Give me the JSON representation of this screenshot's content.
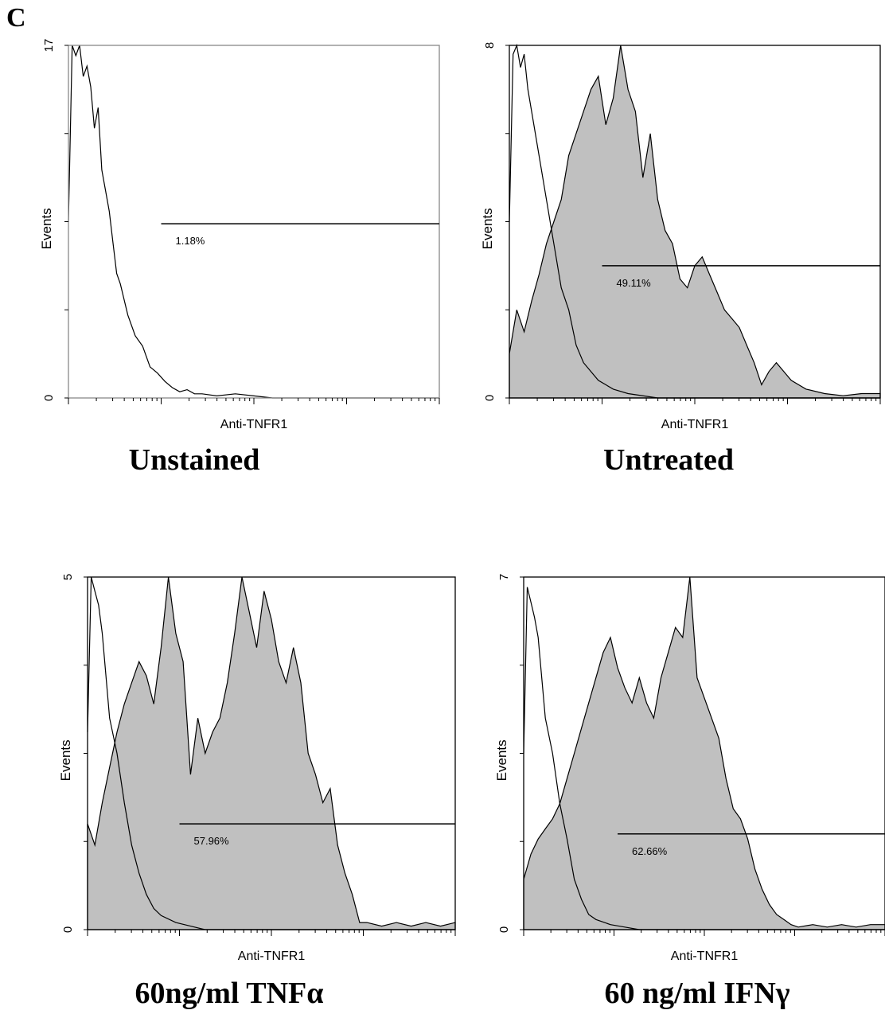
{
  "figure_label": "C",
  "chart_data": [
    {
      "type": "area",
      "title": "Unstained",
      "xlabel": "Anti-TNFR1",
      "ylabel": "Events",
      "ylim": [
        0,
        17
      ],
      "y_tick_labels": [
        "0",
        "17"
      ],
      "x_scale": "log",
      "gate_label": "1.18%",
      "series": [
        {
          "style": "outline",
          "x": [
            0.0,
            0.01,
            0.02,
            0.03,
            0.04,
            0.05,
            0.06,
            0.07,
            0.08,
            0.09,
            0.1,
            0.11,
            0.12,
            0.13,
            0.14,
            0.16,
            0.18,
            0.2,
            0.22,
            0.24,
            0.26,
            0.28,
            0.3,
            0.32,
            0.34,
            0.36,
            0.4,
            0.45,
            0.5,
            0.55,
            0.6,
            1.0
          ],
          "values": [
            8.5,
            17,
            16.5,
            17,
            15.5,
            16,
            15,
            13,
            14,
            11,
            10,
            9,
            7.5,
            6,
            5.5,
            4,
            3,
            2.5,
            1.5,
            1.2,
            0.8,
            0.5,
            0.3,
            0.4,
            0.2,
            0.2,
            0.1,
            0.2,
            0.1,
            0,
            0,
            0
          ]
        }
      ]
    },
    {
      "type": "area",
      "title": "Untreated",
      "xlabel": "Anti-TNFR1",
      "ylabel": "Events",
      "ylim": [
        0,
        8
      ],
      "y_tick_labels": [
        "0",
        "8"
      ],
      "x_scale": "log",
      "gate_label": "49.11%",
      "series": [
        {
          "style": "filled",
          "x": [
            0.0,
            0.02,
            0.04,
            0.06,
            0.08,
            0.1,
            0.12,
            0.14,
            0.16,
            0.18,
            0.2,
            0.22,
            0.24,
            0.26,
            0.28,
            0.3,
            0.32,
            0.34,
            0.36,
            0.38,
            0.4,
            0.42,
            0.44,
            0.46,
            0.48,
            0.5,
            0.52,
            0.54,
            0.56,
            0.58,
            0.6,
            0.62,
            0.64,
            0.66,
            0.68,
            0.7,
            0.72,
            0.74,
            0.76,
            0.8,
            0.85,
            0.9,
            0.95,
            1.0
          ],
          "values": [
            1.0,
            2.0,
            1.5,
            2.2,
            2.8,
            3.5,
            4.0,
            4.5,
            5.5,
            6.0,
            6.5,
            7.0,
            7.3,
            6.2,
            6.8,
            8.0,
            7.0,
            6.5,
            5.0,
            6.0,
            4.5,
            3.8,
            3.5,
            2.7,
            2.5,
            3.0,
            3.2,
            2.8,
            2.4,
            2.0,
            1.8,
            1.6,
            1.2,
            0.8,
            0.3,
            0.6,
            0.8,
            0.6,
            0.4,
            0.2,
            0.1,
            0.05,
            0.1,
            0.1
          ]
        },
        {
          "style": "outline",
          "x": [
            0.0,
            0.01,
            0.02,
            0.03,
            0.04,
            0.05,
            0.06,
            0.08,
            0.1,
            0.12,
            0.14,
            0.16,
            0.18,
            0.2,
            0.24,
            0.28,
            0.32,
            0.4,
            0.5,
            0.6,
            1.0
          ],
          "values": [
            4.0,
            7.8,
            8.0,
            7.5,
            7.8,
            7.0,
            6.5,
            5.5,
            4.5,
            3.5,
            2.5,
            2.0,
            1.2,
            0.8,
            0.4,
            0.2,
            0.1,
            0,
            0,
            0,
            0
          ]
        }
      ]
    },
    {
      "type": "area",
      "title": "60ng/ml TNFα",
      "xlabel": "Anti-TNFR1",
      "ylabel": "Events",
      "ylim": [
        0,
        5
      ],
      "y_tick_labels": [
        "0",
        "5"
      ],
      "x_scale": "log",
      "gate_label": "57.96%",
      "series": [
        {
          "style": "filled",
          "x": [
            0.0,
            0.02,
            0.04,
            0.06,
            0.08,
            0.1,
            0.12,
            0.14,
            0.16,
            0.18,
            0.2,
            0.22,
            0.24,
            0.26,
            0.28,
            0.3,
            0.32,
            0.34,
            0.36,
            0.38,
            0.4,
            0.42,
            0.44,
            0.46,
            0.48,
            0.5,
            0.52,
            0.54,
            0.56,
            0.58,
            0.6,
            0.62,
            0.64,
            0.66,
            0.68,
            0.7,
            0.72,
            0.74,
            0.76,
            0.8,
            0.84,
            0.88,
            0.92,
            0.96,
            1.0
          ],
          "values": [
            1.5,
            1.2,
            1.8,
            2.3,
            2.8,
            3.2,
            3.5,
            3.8,
            3.6,
            3.2,
            4.0,
            5.0,
            4.2,
            3.8,
            2.2,
            3.0,
            2.5,
            2.8,
            3.0,
            3.5,
            4.2,
            5.0,
            4.5,
            4.0,
            4.8,
            4.4,
            3.8,
            3.5,
            4.0,
            3.5,
            2.5,
            2.2,
            1.8,
            2.0,
            1.2,
            0.8,
            0.5,
            0.1,
            0.1,
            0.05,
            0.1,
            0.05,
            0.1,
            0.05,
            0.1
          ]
        },
        {
          "style": "outline",
          "x": [
            0.0,
            0.01,
            0.02,
            0.03,
            0.04,
            0.05,
            0.06,
            0.08,
            0.1,
            0.12,
            0.14,
            0.16,
            0.18,
            0.2,
            0.24,
            0.28,
            0.32,
            0.4,
            0.5,
            1.0
          ],
          "values": [
            2.8,
            5.0,
            4.8,
            4.6,
            4.2,
            3.6,
            3.0,
            2.5,
            1.8,
            1.2,
            0.8,
            0.5,
            0.3,
            0.2,
            0.1,
            0.05,
            0,
            0,
            0,
            0
          ]
        }
      ]
    },
    {
      "type": "area",
      "title": "60 ng/ml IFNγ",
      "xlabel": "Anti-TNFR1",
      "ylabel": "Events",
      "ylim": [
        0,
        7
      ],
      "y_tick_labels": [
        "0",
        "7"
      ],
      "x_scale": "log",
      "gate_label": "62.66%",
      "series": [
        {
          "style": "filled",
          "x": [
            0.0,
            0.02,
            0.04,
            0.06,
            0.08,
            0.1,
            0.12,
            0.14,
            0.16,
            0.18,
            0.2,
            0.22,
            0.24,
            0.26,
            0.28,
            0.3,
            0.32,
            0.34,
            0.36,
            0.38,
            0.4,
            0.42,
            0.44,
            0.46,
            0.48,
            0.5,
            0.52,
            0.54,
            0.56,
            0.58,
            0.6,
            0.62,
            0.64,
            0.66,
            0.68,
            0.7,
            0.72,
            0.74,
            0.76,
            0.8,
            0.84,
            0.88,
            0.92,
            0.96,
            1.0
          ],
          "values": [
            1.0,
            1.5,
            1.8,
            2.0,
            2.2,
            2.5,
            3.0,
            3.5,
            4.0,
            4.5,
            5.0,
            5.5,
            5.8,
            5.2,
            4.8,
            4.5,
            5.0,
            4.5,
            4.2,
            5.0,
            5.5,
            6.0,
            5.8,
            7.0,
            5.0,
            4.6,
            4.2,
            3.8,
            3.0,
            2.4,
            2.2,
            1.8,
            1.2,
            0.8,
            0.5,
            0.3,
            0.2,
            0.1,
            0.05,
            0.1,
            0.05,
            0.1,
            0.05,
            0.1,
            0.1
          ]
        },
        {
          "style": "outline",
          "x": [
            0.0,
            0.01,
            0.02,
            0.03,
            0.04,
            0.05,
            0.06,
            0.08,
            0.1,
            0.12,
            0.14,
            0.16,
            0.18,
            0.2,
            0.24,
            0.28,
            0.32,
            0.4,
            0.5,
            1.0
          ],
          "values": [
            3.5,
            6.8,
            6.5,
            6.2,
            5.8,
            5.0,
            4.2,
            3.5,
            2.5,
            1.8,
            1.0,
            0.6,
            0.3,
            0.2,
            0.1,
            0.05,
            0,
            0,
            0,
            0
          ]
        }
      ]
    }
  ],
  "colors": {
    "fill": "#c0c0c0",
    "line": "#000000"
  }
}
